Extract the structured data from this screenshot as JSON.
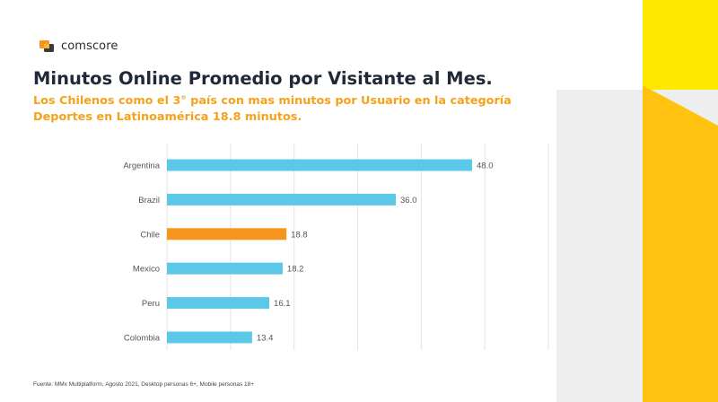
{
  "brand": {
    "name": "comscore",
    "logo_icon": "comscore-logo-icon"
  },
  "header": {
    "title": "Minutos Online Promedio por Visitante al Mes.",
    "subtitle": "Los Chilenos como el 3° país con mas minutos por Usuario en la categoría Deportes en Latinoamérica 18.8 minutos."
  },
  "colors": {
    "bar": "#5bc8e8",
    "highlight": "#f7941d",
    "subtitle": "#f5a21a",
    "deco_yellow": "#ffe800",
    "deco_gold": "#ffc20e",
    "deco_gray": "#eeeeee"
  },
  "chart_data": {
    "type": "bar",
    "orientation": "horizontal",
    "categories": [
      "Argentina",
      "Brazil",
      "Chile",
      "Mexico",
      "Peru",
      "Colombia"
    ],
    "values": [
      48.0,
      36.0,
      18.8,
      18.2,
      16.1,
      13.4
    ],
    "value_labels": [
      "48.0",
      "36.0",
      "18.8",
      "18.2",
      "16.1",
      "13.4"
    ],
    "highlight": "Chile",
    "xlim": [
      0,
      60
    ],
    "grid": true,
    "legend": "none"
  },
  "footer": {
    "source": "Fuente: MMx Multiplatform, Agosto 2021, Desktop personas 6+, Mobile personas 18+"
  }
}
